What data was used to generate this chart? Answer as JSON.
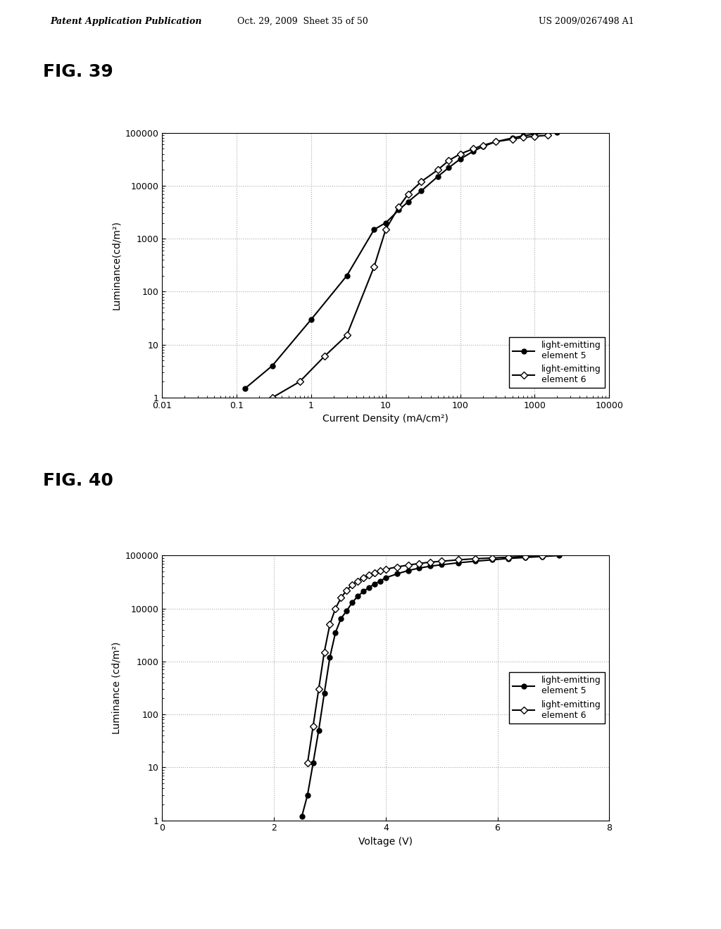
{
  "header_left": "Patent Application Publication",
  "header_mid": "Oct. 29, 2009  Sheet 35 of 50",
  "header_right": "US 2009/0267498 A1",
  "fig39_title": "FIG. 39",
  "fig40_title": "FIG. 40",
  "fig39": {
    "xlabel": "Current Density (mA/cm²)",
    "ylabel": "Luminance(cd/m²)",
    "xlim": [
      0.01,
      10000
    ],
    "ylim": [
      1,
      100000
    ],
    "legend1": "light-emitting\nelement 5",
    "legend2": "light-emitting\nelement 6",
    "series1_x": [
      0.13,
      0.3,
      1.0,
      3.0,
      7.0,
      10.0,
      15.0,
      20.0,
      30.0,
      50.0,
      70.0,
      100.0,
      150.0,
      200.0,
      300.0,
      500.0,
      700.0,
      1000.0,
      1500.0,
      2000.0
    ],
    "series1_y": [
      1.5,
      4.0,
      30.0,
      200.0,
      1500.0,
      2000.0,
      3500.0,
      5000.0,
      8000.0,
      15000.0,
      22000.0,
      32000.0,
      45000.0,
      55000.0,
      68000.0,
      80000.0,
      88000.0,
      95000.0,
      100000.0,
      102000.0
    ],
    "series2_x": [
      0.3,
      0.7,
      1.5,
      3.0,
      7.0,
      10.0,
      15.0,
      20.0,
      30.0,
      50.0,
      70.0,
      100.0,
      150.0,
      200.0,
      300.0,
      500.0,
      700.0,
      1000.0,
      1500.0
    ],
    "series2_y": [
      1.0,
      2.0,
      6.0,
      15.0,
      300.0,
      1500.0,
      4000.0,
      7000.0,
      12000.0,
      20000.0,
      30000.0,
      40000.0,
      50000.0,
      58000.0,
      68000.0,
      76000.0,
      82000.0,
      86000.0,
      90000.0
    ]
  },
  "fig40": {
    "xlabel": "Voltage (V)",
    "ylabel": "Luminance (cd/m²)",
    "xlim": [
      0,
      8
    ],
    "ylim": [
      1,
      100000
    ],
    "xticks": [
      0,
      2,
      4,
      6,
      8
    ],
    "legend1": "light-emitting\nelement 5",
    "legend2": "light-emitting\nelement 6",
    "series1_x": [
      2.5,
      2.6,
      2.7,
      2.8,
      2.9,
      3.0,
      3.1,
      3.2,
      3.3,
      3.4,
      3.5,
      3.6,
      3.7,
      3.8,
      3.9,
      4.0,
      4.2,
      4.4,
      4.6,
      4.8,
      5.0,
      5.3,
      5.6,
      5.9,
      6.2,
      6.5,
      6.8,
      7.1
    ],
    "series1_y": [
      1.2,
      3.0,
      12.0,
      50.0,
      250.0,
      1200.0,
      3500.0,
      6500.0,
      9000.0,
      13000.0,
      17000.0,
      21000.0,
      25000.0,
      29000.0,
      33000.0,
      38000.0,
      45000.0,
      52000.0,
      58000.0,
      63000.0,
      67000.0,
      73000.0,
      78000.0,
      83000.0,
      88000.0,
      92000.0,
      96000.0,
      100000.0
    ],
    "series2_x": [
      2.6,
      2.7,
      2.8,
      2.9,
      3.0,
      3.1,
      3.2,
      3.3,
      3.4,
      3.5,
      3.6,
      3.7,
      3.8,
      3.9,
      4.0,
      4.2,
      4.4,
      4.6,
      4.8,
      5.0,
      5.3,
      5.6,
      5.9,
      6.2,
      6.5,
      6.8
    ],
    "series2_y": [
      12.0,
      60.0,
      300.0,
      1500.0,
      5000.0,
      10000.0,
      16000.0,
      22000.0,
      28000.0,
      33000.0,
      38000.0,
      43000.0,
      47000.0,
      51000.0,
      55000.0,
      61000.0,
      66000.0,
      71000.0,
      75000.0,
      78000.0,
      83000.0,
      87000.0,
      90000.0,
      93000.0,
      96000.0,
      98000.0
    ]
  },
  "bg_color": "#ffffff",
  "text_color": "#000000",
  "line_color": "#000000",
  "marker1": "o",
  "marker2": "D",
  "marker_fill1": "#000000",
  "marker_fill2": "#ffffff",
  "grid_color": "#aaaaaa",
  "grid_style": ":",
  "grid_linewidth": 0.8
}
